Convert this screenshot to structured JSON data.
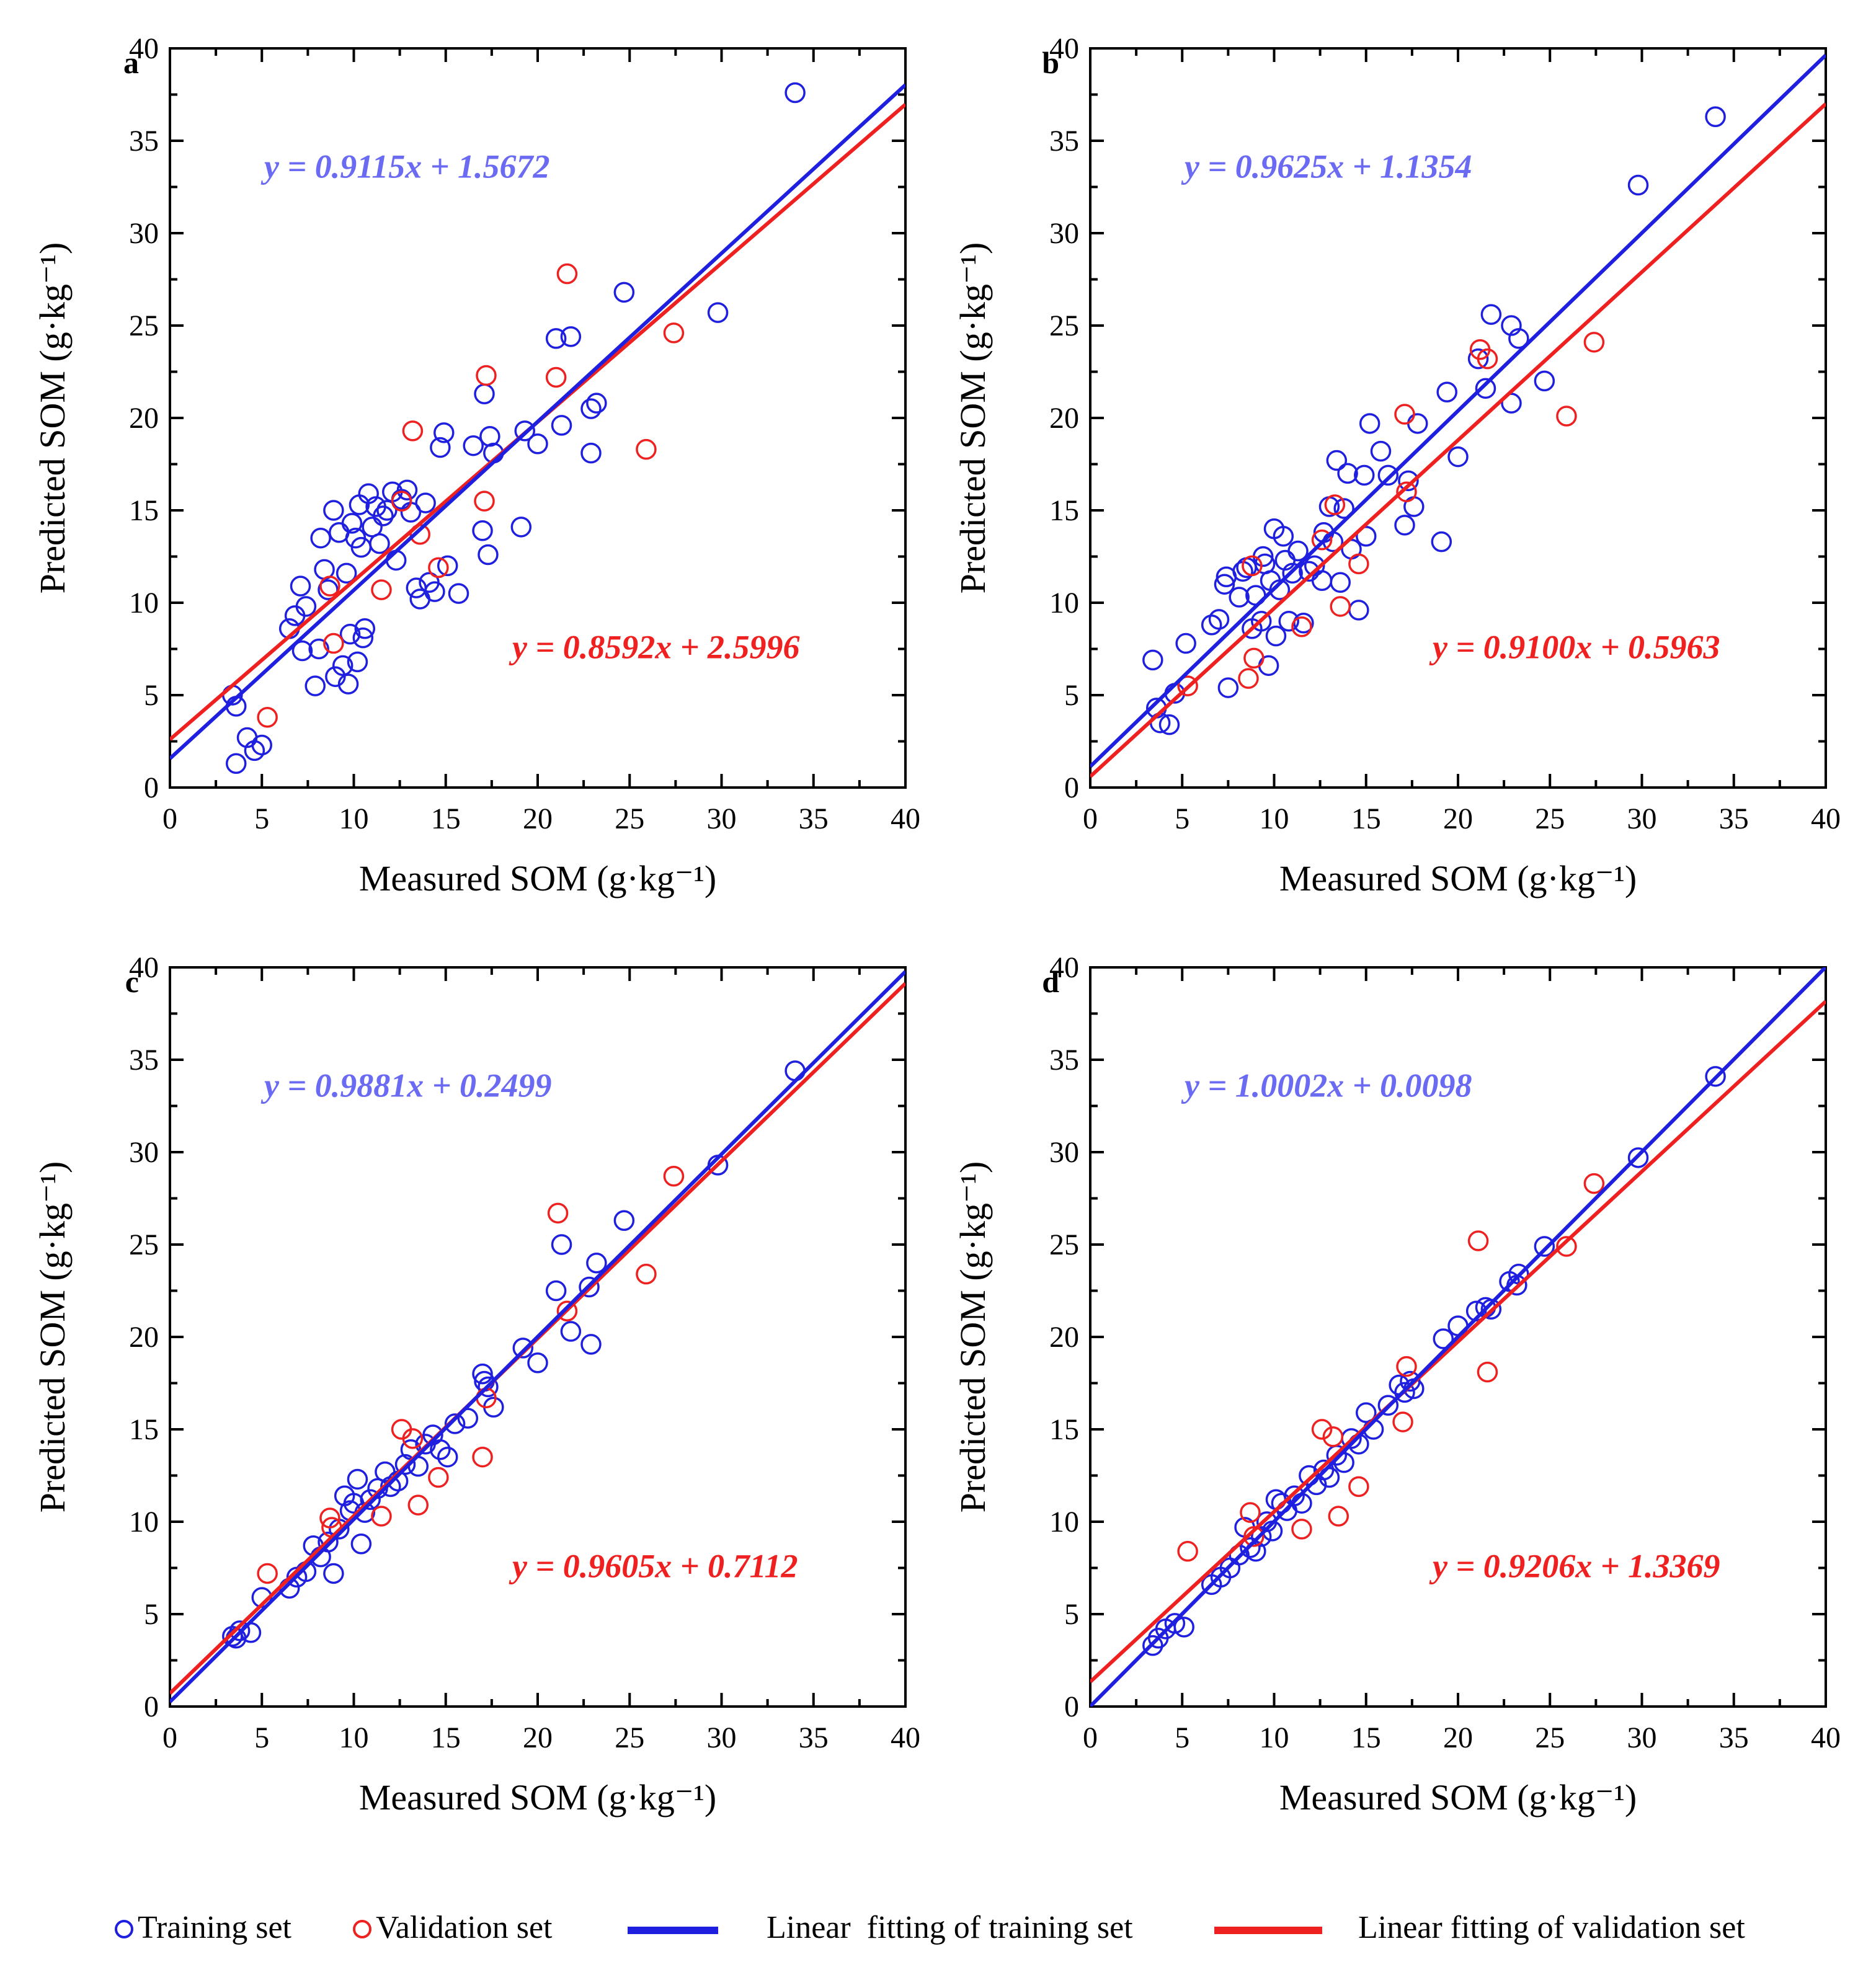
{
  "colors": {
    "training": "#1f1fe0",
    "validation": "#ee2020",
    "axis": "#000000",
    "training_eq": "#6a6af2",
    "validation_eq": "#ee2020"
  },
  "chart_data": [
    {
      "type": "scatter",
      "panel_label": "a",
      "xlabel": "Measured SOM (g·kg⁻¹)",
      "ylabel": "Predicted SOM (g·kg⁻¹)",
      "xlim": [
        0,
        40
      ],
      "ylim": [
        0,
        40
      ],
      "x_ticks": [
        "0",
        "5",
        "10",
        "15",
        "20",
        "25",
        "30",
        "35",
        "40"
      ],
      "y_ticks": [
        "0",
        "5",
        "10",
        "15",
        "20",
        "25",
        "30",
        "35",
        "40"
      ],
      "training_equation": "y = 0.9115x + 1.5672",
      "validation_equation": "y = 0.8592x + 2.5996",
      "training_fit": {
        "slope": 0.9115,
        "intercept": 1.5672
      },
      "validation_fit": {
        "slope": 0.8592,
        "intercept": 2.5996
      },
      "training": [
        [
          3.4,
          5.0
        ],
        [
          3.6,
          4.4
        ],
        [
          3.6,
          1.3
        ],
        [
          4.2,
          2.7
        ],
        [
          4.6,
          2.0
        ],
        [
          5.0,
          2.3
        ],
        [
          6.5,
          8.6
        ],
        [
          6.8,
          9.3
        ],
        [
          7.1,
          10.9
        ],
        [
          7.2,
          7.4
        ],
        [
          7.4,
          9.8
        ],
        [
          7.9,
          5.5
        ],
        [
          8.1,
          7.5
        ],
        [
          8.2,
          13.5
        ],
        [
          8.4,
          11.8
        ],
        [
          8.6,
          10.7
        ],
        [
          8.9,
          15.0
        ],
        [
          9.0,
          6.0
        ],
        [
          9.2,
          13.8
        ],
        [
          9.4,
          6.6
        ],
        [
          9.6,
          11.6
        ],
        [
          9.7,
          5.6
        ],
        [
          9.8,
          8.3
        ],
        [
          9.9,
          14.3
        ],
        [
          10.1,
          13.5
        ],
        [
          10.2,
          6.8
        ],
        [
          10.3,
          15.3
        ],
        [
          10.4,
          13.0
        ],
        [
          10.5,
          8.1
        ],
        [
          10.6,
          8.6
        ],
        [
          10.8,
          15.9
        ],
        [
          11.0,
          14.1
        ],
        [
          11.2,
          15.2
        ],
        [
          11.4,
          13.2
        ],
        [
          11.6,
          14.7
        ],
        [
          11.8,
          15.0
        ],
        [
          12.1,
          16.0
        ],
        [
          12.3,
          12.3
        ],
        [
          12.6,
          15.6
        ],
        [
          12.9,
          16.1
        ],
        [
          13.1,
          14.9
        ],
        [
          13.4,
          10.8
        ],
        [
          13.6,
          10.2
        ],
        [
          13.9,
          15.4
        ],
        [
          14.1,
          11.1
        ],
        [
          14.4,
          10.6
        ],
        [
          14.7,
          18.4
        ],
        [
          14.9,
          19.2
        ],
        [
          15.1,
          12.0
        ],
        [
          15.7,
          10.5
        ],
        [
          16.5,
          18.5
        ],
        [
          17.0,
          13.9
        ],
        [
          17.1,
          21.3
        ],
        [
          17.3,
          12.6
        ],
        [
          17.4,
          19.0
        ],
        [
          17.6,
          18.1
        ],
        [
          19.1,
          14.1
        ],
        [
          19.3,
          19.3
        ],
        [
          20.0,
          18.6
        ],
        [
          21.0,
          24.3
        ],
        [
          21.3,
          19.6
        ],
        [
          21.8,
          24.4
        ],
        [
          22.9,
          20.5
        ],
        [
          22.9,
          18.1
        ],
        [
          23.2,
          20.8
        ],
        [
          24.7,
          26.8
        ],
        [
          29.8,
          25.7
        ],
        [
          34.0,
          37.6
        ]
      ],
      "validation": [
        [
          5.3,
          3.8
        ],
        [
          8.7,
          10.9
        ],
        [
          8.9,
          7.8
        ],
        [
          11.5,
          10.7
        ],
        [
          12.6,
          15.5
        ],
        [
          13.2,
          19.3
        ],
        [
          13.6,
          13.7
        ],
        [
          14.6,
          11.9
        ],
        [
          17.1,
          15.5
        ],
        [
          17.2,
          22.3
        ],
        [
          21.0,
          22.2
        ],
        [
          21.6,
          27.8
        ],
        [
          25.9,
          18.3
        ],
        [
          27.4,
          24.6
        ]
      ]
    },
    {
      "type": "scatter",
      "panel_label": "b",
      "xlabel": "Measured SOM (g·kg⁻¹)",
      "ylabel": "Predicted SOM (g·kg⁻¹)",
      "xlim": [
        0,
        40
      ],
      "ylim": [
        0,
        40
      ],
      "x_ticks": [
        "0",
        "5",
        "10",
        "15",
        "20",
        "25",
        "30",
        "35",
        "40"
      ],
      "y_ticks": [
        "0",
        "5",
        "10",
        "15",
        "20",
        "25",
        "30",
        "35",
        "40"
      ],
      "training_equation": "y = 0.9625x + 1.1354",
      "validation_equation": "y = 0.9100x + 0.5963",
      "training_fit": {
        "slope": 0.9625,
        "intercept": 1.1354
      },
      "validation_fit": {
        "slope": 0.91,
        "intercept": 0.5963
      },
      "training": [
        [
          3.4,
          6.9
        ],
        [
          3.6,
          4.3
        ],
        [
          3.8,
          3.5
        ],
        [
          4.3,
          3.4
        ],
        [
          4.6,
          5.1
        ],
        [
          5.2,
          7.8
        ],
        [
          6.6,
          8.8
        ],
        [
          7.0,
          9.1
        ],
        [
          7.4,
          11.4
        ],
        [
          7.5,
          5.4
        ],
        [
          8.1,
          10.3
        ],
        [
          8.3,
          11.7
        ],
        [
          8.5,
          11.9
        ],
        [
          8.8,
          8.6
        ],
        [
          9.0,
          10.4
        ],
        [
          9.3,
          9.0
        ],
        [
          9.5,
          12.1
        ],
        [
          9.7,
          6.6
        ],
        [
          9.8,
          11.2
        ],
        [
          10.0,
          14.0
        ],
        [
          10.1,
          8.2
        ],
        [
          10.3,
          10.7
        ],
        [
          10.5,
          13.6
        ],
        [
          10.6,
          12.3
        ],
        [
          10.8,
          9.0
        ],
        [
          11.0,
          11.6
        ],
        [
          11.3,
          12.8
        ],
        [
          11.6,
          8.9
        ],
        [
          11.9,
          11.7
        ],
        [
          12.2,
          12.0
        ],
        [
          12.6,
          11.2
        ],
        [
          12.7,
          13.8
        ],
        [
          13.0,
          15.2
        ],
        [
          13.2,
          13.3
        ],
        [
          13.6,
          11.1
        ],
        [
          13.8,
          15.1
        ],
        [
          14.0,
          17.0
        ],
        [
          14.2,
          12.9
        ],
        [
          14.6,
          9.6
        ],
        [
          15.0,
          13.6
        ],
        [
          15.2,
          19.7
        ],
        [
          15.8,
          18.2
        ],
        [
          16.2,
          16.9
        ],
        [
          17.1,
          14.2
        ],
        [
          17.3,
          16.6
        ],
        [
          17.6,
          15.2
        ],
        [
          17.8,
          19.7
        ],
        [
          19.1,
          13.3
        ],
        [
          19.4,
          21.4
        ],
        [
          20.0,
          17.9
        ],
        [
          21.1,
          23.2
        ],
        [
          21.5,
          21.6
        ],
        [
          21.8,
          25.6
        ],
        [
          22.9,
          25.0
        ],
        [
          22.9,
          20.8
        ],
        [
          23.3,
          24.3
        ],
        [
          24.7,
          22.0
        ],
        [
          29.8,
          32.6
        ],
        [
          34.0,
          36.3
        ],
        [
          13.4,
          17.7
        ],
        [
          14.9,
          16.9
        ],
        [
          7.3,
          11.0
        ],
        [
          9.4,
          12.5
        ]
      ],
      "validation": [
        [
          5.3,
          5.5
        ],
        [
          8.6,
          5.9
        ],
        [
          8.9,
          7.0
        ],
        [
          8.8,
          12.0
        ],
        [
          11.5,
          8.7
        ],
        [
          12.6,
          13.4
        ],
        [
          13.3,
          15.3
        ],
        [
          13.6,
          9.8
        ],
        [
          14.6,
          12.1
        ],
        [
          17.1,
          20.2
        ],
        [
          17.2,
          16.0
        ],
        [
          21.2,
          23.7
        ],
        [
          21.6,
          23.2
        ],
        [
          25.9,
          20.1
        ],
        [
          27.4,
          24.1
        ]
      ]
    },
    {
      "type": "scatter",
      "panel_label": "c",
      "xlabel": "Measured SOM (g·kg⁻¹)",
      "ylabel": "Predicted SOM (g·kg⁻¹)",
      "xlim": [
        0,
        40
      ],
      "ylim": [
        0,
        40
      ],
      "x_ticks": [
        "0",
        "5",
        "10",
        "15",
        "20",
        "25",
        "30",
        "35",
        "40"
      ],
      "y_ticks": [
        "0",
        "5",
        "10",
        "15",
        "20",
        "25",
        "30",
        "35",
        "40"
      ],
      "training_equation": "y = 0.9881x + 0.2499",
      "validation_equation": "y = 0.9605x + 0.7112",
      "training_fit": {
        "slope": 0.9881,
        "intercept": 0.2499
      },
      "validation_fit": {
        "slope": 0.9605,
        "intercept": 0.7112
      },
      "training": [
        [
          3.4,
          3.8
        ],
        [
          3.6,
          3.7
        ],
        [
          3.8,
          4.1
        ],
        [
          4.4,
          4.0
        ],
        [
          5.0,
          5.9
        ],
        [
          6.5,
          6.4
        ],
        [
          6.9,
          7.0
        ],
        [
          7.4,
          7.3
        ],
        [
          7.8,
          8.7
        ],
        [
          8.2,
          8.1
        ],
        [
          8.6,
          8.9
        ],
        [
          8.9,
          7.2
        ],
        [
          9.2,
          9.6
        ],
        [
          9.5,
          11.4
        ],
        [
          9.8,
          10.6
        ],
        [
          10.0,
          11.0
        ],
        [
          10.2,
          12.3
        ],
        [
          10.4,
          8.8
        ],
        [
          10.6,
          10.5
        ],
        [
          10.9,
          11.2
        ],
        [
          11.3,
          11.8
        ],
        [
          11.7,
          12.7
        ],
        [
          12.0,
          11.9
        ],
        [
          12.4,
          12.2
        ],
        [
          12.8,
          13.1
        ],
        [
          13.1,
          13.9
        ],
        [
          13.5,
          13.0
        ],
        [
          13.9,
          14.2
        ],
        [
          14.3,
          14.7
        ],
        [
          14.7,
          13.9
        ],
        [
          15.1,
          13.5
        ],
        [
          15.5,
          15.3
        ],
        [
          16.2,
          15.6
        ],
        [
          17.0,
          18.0
        ],
        [
          17.1,
          17.6
        ],
        [
          17.3,
          17.3
        ],
        [
          17.6,
          16.2
        ],
        [
          19.2,
          19.4
        ],
        [
          20.0,
          18.6
        ],
        [
          21.0,
          22.5
        ],
        [
          21.3,
          25.0
        ],
        [
          21.8,
          20.3
        ],
        [
          22.8,
          22.7
        ],
        [
          22.9,
          19.6
        ],
        [
          23.2,
          24.0
        ],
        [
          24.7,
          26.3
        ],
        [
          29.8,
          29.3
        ],
        [
          34.0,
          34.4
        ]
      ],
      "validation": [
        [
          5.3,
          7.2
        ],
        [
          8.7,
          10.2
        ],
        [
          8.8,
          9.7
        ],
        [
          11.5,
          10.3
        ],
        [
          12.6,
          15.0
        ],
        [
          13.2,
          14.5
        ],
        [
          13.5,
          10.9
        ],
        [
          14.6,
          12.4
        ],
        [
          17.0,
          13.5
        ],
        [
          17.2,
          16.7
        ],
        [
          21.1,
          26.7
        ],
        [
          21.6,
          21.4
        ],
        [
          25.9,
          23.4
        ],
        [
          27.4,
          28.7
        ]
      ]
    },
    {
      "type": "scatter",
      "panel_label": "d",
      "xlabel": "Measured SOM (g·kg⁻¹)",
      "ylabel": "Predicted SOM (g·kg⁻¹)",
      "xlim": [
        0,
        40
      ],
      "ylim": [
        0,
        40
      ],
      "x_ticks": [
        "0",
        "5",
        "10",
        "15",
        "20",
        "25",
        "30",
        "35",
        "40"
      ],
      "y_ticks": [
        "0",
        "5",
        "10",
        "15",
        "20",
        "25",
        "30",
        "35",
        "40"
      ],
      "training_equation": "y = 1.0002x + 0.0098",
      "validation_equation": "y = 0.9206x + 1.3369",
      "training_fit": {
        "slope": 1.0002,
        "intercept": 0.0098
      },
      "validation_fit": {
        "slope": 0.9206,
        "intercept": 1.3369
      },
      "training": [
        [
          3.4,
          3.3
        ],
        [
          3.7,
          3.7
        ],
        [
          4.1,
          4.2
        ],
        [
          4.6,
          4.5
        ],
        [
          5.1,
          4.3
        ],
        [
          6.6,
          6.6
        ],
        [
          7.1,
          7.0
        ],
        [
          7.6,
          7.5
        ],
        [
          8.1,
          8.2
        ],
        [
          8.4,
          9.7
        ],
        [
          8.7,
          8.6
        ],
        [
          9.0,
          8.4
        ],
        [
          9.3,
          9.2
        ],
        [
          9.6,
          10.0
        ],
        [
          9.9,
          9.5
        ],
        [
          10.1,
          11.2
        ],
        [
          10.4,
          11.0
        ],
        [
          10.7,
          10.6
        ],
        [
          11.1,
          11.4
        ],
        [
          11.5,
          11.0
        ],
        [
          11.9,
          12.5
        ],
        [
          12.3,
          12.0
        ],
        [
          12.7,
          12.8
        ],
        [
          13.0,
          12.4
        ],
        [
          13.4,
          13.6
        ],
        [
          13.8,
          13.2
        ],
        [
          14.2,
          14.5
        ],
        [
          14.6,
          14.2
        ],
        [
          15.0,
          15.9
        ],
        [
          15.4,
          15.0
        ],
        [
          16.2,
          16.3
        ],
        [
          16.8,
          17.4
        ],
        [
          17.1,
          17.0
        ],
        [
          17.4,
          17.6
        ],
        [
          17.6,
          17.2
        ],
        [
          19.2,
          19.9
        ],
        [
          20.0,
          20.6
        ],
        [
          21.0,
          21.4
        ],
        [
          21.5,
          21.6
        ],
        [
          21.8,
          21.5
        ],
        [
          22.8,
          23.0
        ],
        [
          23.2,
          22.8
        ],
        [
          23.3,
          23.4
        ],
        [
          24.7,
          24.9
        ],
        [
          29.8,
          29.7
        ],
        [
          34.0,
          34.1
        ]
      ],
      "validation": [
        [
          5.3,
          8.4
        ],
        [
          8.7,
          10.5
        ],
        [
          8.9,
          9.2
        ],
        [
          11.5,
          9.6
        ],
        [
          12.6,
          15.0
        ],
        [
          13.2,
          14.6
        ],
        [
          13.5,
          10.3
        ],
        [
          14.6,
          11.9
        ],
        [
          17.0,
          15.4
        ],
        [
          17.2,
          18.4
        ],
        [
          21.1,
          25.2
        ],
        [
          21.6,
          18.1
        ],
        [
          25.9,
          24.9
        ],
        [
          27.4,
          28.3
        ]
      ]
    }
  ],
  "legend": {
    "training_set": "Training set",
    "validation_set": "Validation set",
    "training_fit": "Linear  fitting of training set",
    "validation_fit": "Linear fitting of validation set"
  }
}
